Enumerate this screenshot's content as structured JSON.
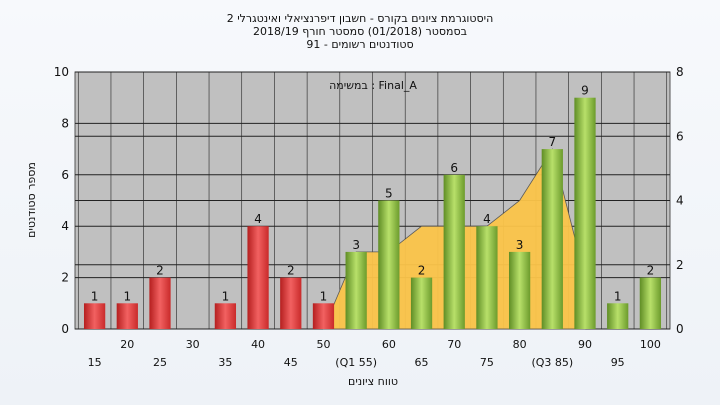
{
  "chart_data": {
    "type": "bar",
    "title_lines": [
      "היסטוגרמת ציונים בקורס - חשבון דיפרנציאלי ואינטגרלי 2",
      "בסמסטר  (01/2018)  סמסטר חורף 2018/19",
      "סטודנטים רשומים - 91"
    ],
    "annotation": "במשימה : Final_A",
    "xlabel": "טווח ציונים",
    "ylabel": "מספר סטודנטים",
    "ylim": [
      0,
      10
    ],
    "y2lim": [
      0,
      8
    ],
    "yticks": [
      0,
      2,
      4,
      6,
      8,
      10
    ],
    "y2ticks": [
      0,
      2,
      4,
      6,
      8
    ],
    "grid": true,
    "categories": [
      "15",
      "20",
      "25",
      "30",
      "35",
      "40",
      "45",
      "50",
      "(Q1 55)",
      "60",
      "65",
      "70",
      "75",
      "80",
      "(Q3 85)",
      "90",
      "95",
      "100"
    ],
    "values": [
      1,
      1,
      2,
      0,
      1,
      4,
      2,
      1,
      3,
      5,
      2,
      6,
      4,
      3,
      7,
      9,
      1,
      2
    ],
    "bar_colors": [
      "#e03a3a",
      "#e03a3a",
      "#e03a3a",
      "#e03a3a",
      "#e03a3a",
      "#e03a3a",
      "#e03a3a",
      "#e03a3a",
      "#8dc63f",
      "#8dc63f",
      "#8dc63f",
      "#8dc63f",
      "#8dc63f",
      "#8dc63f",
      "#8dc63f",
      "#8dc63f",
      "#8dc63f",
      "#8dc63f"
    ],
    "area_values": [
      null,
      null,
      null,
      null,
      null,
      null,
      null,
      0,
      3,
      3,
      4,
      4,
      4,
      5,
      7,
      2,
      null,
      null
    ],
    "area_color": "#fcc54a",
    "plot_background": "#c0c0c0"
  }
}
